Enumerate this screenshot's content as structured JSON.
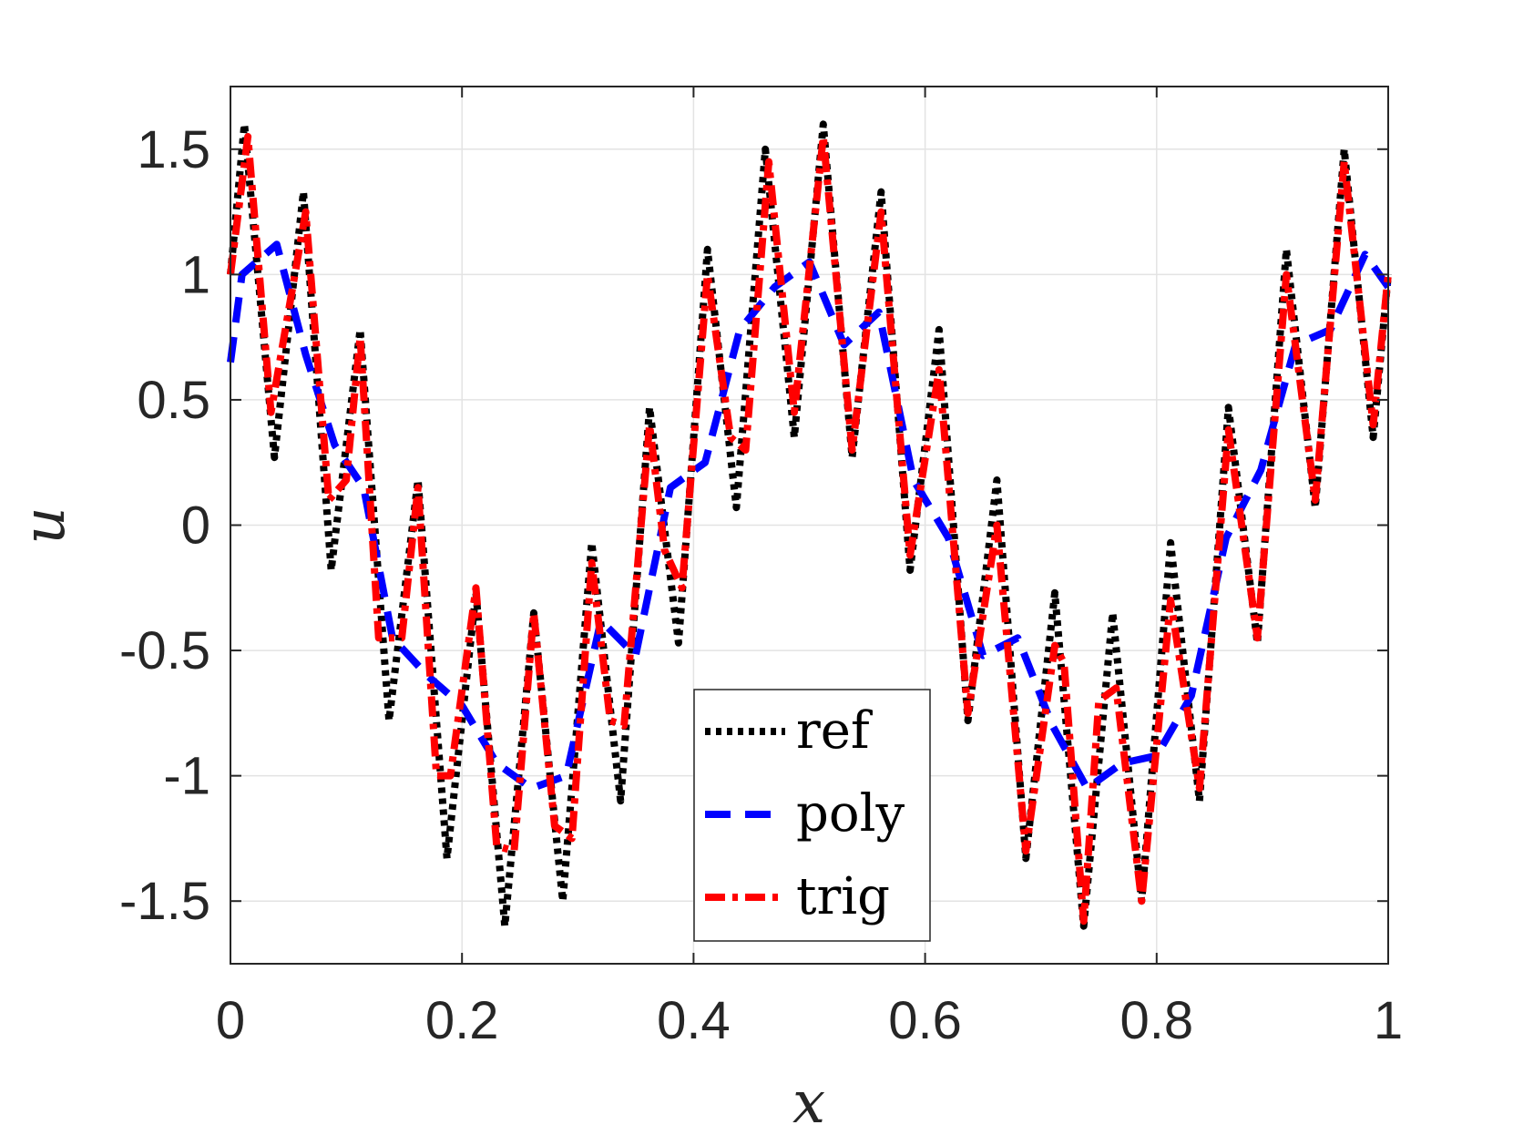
{
  "chart_data": {
    "type": "line",
    "title": "",
    "xlabel": "x",
    "ylabel": "u",
    "xlim": [
      0,
      1
    ],
    "ylim": [
      -1.75,
      1.75
    ],
    "xticks": [
      0,
      0.2,
      0.4,
      0.6,
      0.8,
      1
    ],
    "xtick_labels": [
      "0",
      "0.2",
      "0.4",
      "0.6",
      "0.8",
      "1"
    ],
    "yticks": [
      -1.5,
      -1,
      -0.5,
      0,
      0.5,
      1,
      1.5
    ],
    "ytick_labels": [
      "-1.5",
      "-1",
      "-0.5",
      "0",
      "0.5",
      "1",
      "1.5"
    ],
    "grid": true,
    "legend_position": "bottom-center",
    "series": [
      {
        "name": "ref",
        "color": "#000000",
        "style": "dotted",
        "x": [
          0,
          0.012,
          0.038,
          0.063,
          0.087,
          0.112,
          0.137,
          0.162,
          0.187,
          0.212,
          0.237,
          0.262,
          0.287,
          0.312,
          0.337,
          0.362,
          0.387,
          0.412,
          0.437,
          0.462,
          0.487,
          0.512,
          0.537,
          0.562,
          0.587,
          0.612,
          0.637,
          0.662,
          0.687,
          0.712,
          0.737,
          0.762,
          0.787,
          0.812,
          0.837,
          0.862,
          0.887,
          0.912,
          0.937,
          0.962,
          0.987,
          1
        ],
        "y": [
          1,
          1.6,
          0.27,
          1.33,
          -0.18,
          0.78,
          -0.78,
          0.18,
          -1.33,
          -0.27,
          -1.6,
          -0.35,
          -1.5,
          -0.07,
          -1.1,
          0.47,
          -0.47,
          1.1,
          0.07,
          1.5,
          0.35,
          1.6,
          0.27,
          1.33,
          -0.18,
          0.78,
          -0.78,
          0.18,
          -1.33,
          -0.27,
          -1.6,
          -0.35,
          -1.5,
          -0.07,
          -1.1,
          0.47,
          -0.47,
          1.1,
          0.07,
          1.5,
          0.35,
          1
        ]
      },
      {
        "name": "poly",
        "color": "#0000ff",
        "style": "dashed",
        "x": [
          0,
          0.01,
          0.04,
          0.065,
          0.09,
          0.115,
          0.14,
          0.17,
          0.2,
          0.23,
          0.26,
          0.29,
          0.32,
          0.35,
          0.38,
          0.41,
          0.44,
          0.47,
          0.5,
          0.53,
          0.56,
          0.59,
          0.62,
          0.65,
          0.68,
          0.71,
          0.74,
          0.77,
          0.8,
          0.83,
          0.86,
          0.89,
          0.92,
          0.95,
          0.98,
          1
        ],
        "y": [
          0.65,
          1.0,
          1.12,
          0.68,
          0.32,
          0.15,
          -0.45,
          -0.6,
          -0.72,
          -0.95,
          -1.05,
          -1.0,
          -0.38,
          -0.52,
          0.15,
          0.25,
          0.78,
          0.95,
          1.05,
          0.72,
          0.85,
          0.18,
          -0.05,
          -0.52,
          -0.45,
          -0.8,
          -1.05,
          -0.95,
          -0.92,
          -0.68,
          -0.05,
          0.22,
          0.72,
          0.78,
          1.08,
          0.95
        ]
      },
      {
        "name": "trig",
        "color": "#ff0000",
        "style": "dashdot",
        "x": [
          0,
          0.015,
          0.035,
          0.065,
          0.085,
          0.1,
          0.112,
          0.128,
          0.148,
          0.162,
          0.178,
          0.19,
          0.212,
          0.23,
          0.245,
          0.262,
          0.28,
          0.295,
          0.312,
          0.328,
          0.34,
          0.362,
          0.375,
          0.39,
          0.412,
          0.432,
          0.445,
          0.465,
          0.487,
          0.512,
          0.537,
          0.562,
          0.587,
          0.612,
          0.637,
          0.662,
          0.687,
          0.712,
          0.72,
          0.737,
          0.75,
          0.765,
          0.787,
          0.812,
          0.837,
          0.862,
          0.887,
          0.912,
          0.937,
          0.962,
          0.987,
          1
        ],
        "y": [
          1,
          1.55,
          0.45,
          1.25,
          0.1,
          0.18,
          0.75,
          -0.45,
          -0.45,
          0.15,
          -1.0,
          -1.0,
          -0.25,
          -1.28,
          -1.3,
          -0.35,
          -1.2,
          -1.25,
          -0.15,
          -0.78,
          -0.8,
          0.4,
          -0.1,
          -0.25,
          1.0,
          0.35,
          0.3,
          1.45,
          0.45,
          1.55,
          0.3,
          1.25,
          -0.12,
          0.62,
          -0.75,
          0.0,
          -1.3,
          -0.48,
          -0.55,
          -1.58,
          -0.7,
          -0.65,
          -1.5,
          -0.3,
          -1.05,
          0.38,
          -0.45,
          1.0,
          0.1,
          1.45,
          0.4,
          1
        ]
      }
    ]
  }
}
